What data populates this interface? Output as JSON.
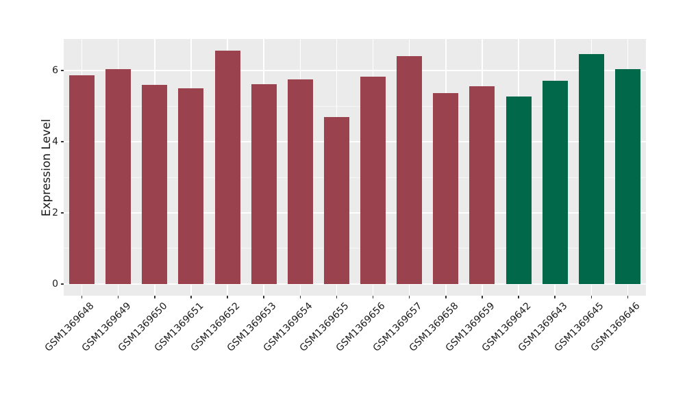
{
  "chart_data": {
    "type": "bar",
    "title": "",
    "xlabel": "",
    "ylabel": "Expression Level",
    "categories": [
      "GSM1369648",
      "GSM1369649",
      "GSM1369650",
      "GSM1369651",
      "GSM1369652",
      "GSM1369653",
      "GSM1369654",
      "GSM1369655",
      "GSM1369656",
      "GSM1369657",
      "GSM1369658",
      "GSM1369659",
      "GSM1369642",
      "GSM1369643",
      "GSM1369645",
      "GSM1369646"
    ],
    "series": [
      {
        "name": "Expression Level",
        "values": [
          5.86,
          6.04,
          5.6,
          5.51,
          6.56,
          5.62,
          5.75,
          4.7,
          5.84,
          6.41,
          5.36,
          5.57,
          5.28,
          5.71,
          6.47,
          6.05
        ]
      }
    ],
    "groups": [
      "A",
      "A",
      "A",
      "A",
      "A",
      "A",
      "A",
      "A",
      "A",
      "A",
      "A",
      "A",
      "B",
      "B",
      "B",
      "B"
    ],
    "group_colors": {
      "A": "#9A434E",
      "B": "#016849"
    },
    "yticks": [
      0,
      2,
      4,
      6
    ],
    "yticks_minor": [
      1,
      3,
      5
    ],
    "ylim": [
      -0.33,
      6.89
    ],
    "grid": true,
    "legend_position": "none",
    "figure_bg": "#FFFFFF",
    "panel_bg": "#EBEBEB",
    "grid_major_color": "#FFFFFF",
    "grid_minor_color": "rgba(255,255,255,0.55)",
    "tick_color": "#333333",
    "text_color": "#1A1A1A"
  }
}
